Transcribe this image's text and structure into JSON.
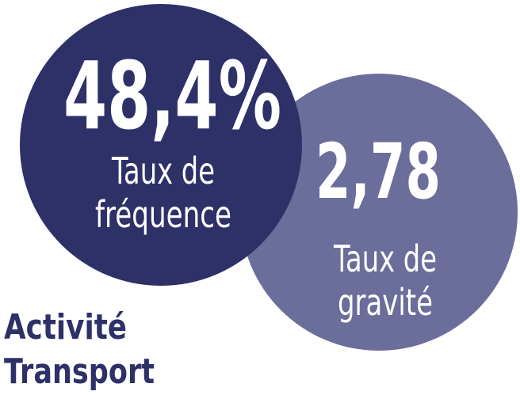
{
  "circles": [
    {
      "value": "48,4%",
      "label": [
        "Taux de",
        "fréquence"
      ]
    },
    {
      "value": "2,78",
      "label": [
        "Taux de",
        "gravité"
      ]
    }
  ],
  "title": [
    "Activité",
    "Transport"
  ]
}
